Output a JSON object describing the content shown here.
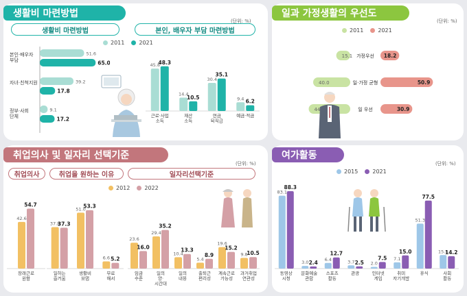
{
  "colors": {
    "teal": "#1fb3a8",
    "light_teal": "#a9ddd4",
    "green": "#8cc63f",
    "light_green": "#c9e3a3",
    "salmon": "#e8958b",
    "rose": "#c2767c",
    "pink": "#d4a0a6",
    "gold": "#f2c063",
    "purple": "#8a5db3",
    "lavender": "#c8b7e0",
    "light_blue": "#9ec7e8"
  },
  "panels": {
    "living": {
      "title": "생활비 마련방법",
      "unit": "(단위: %)",
      "pill_left": "생활비 마련방법",
      "pill_right": "본인, 배우자 부담 마련방법",
      "legend": [
        "2011",
        "2021"
      ]
    },
    "balance": {
      "title": "일과 가정생활의 우선도",
      "unit": "(단위: %)",
      "legend": [
        "2011",
        "2021"
      ]
    },
    "employment": {
      "title": "취업의사 및 일자리 선택기준",
      "unit": "(단위: %)",
      "pill_1": "취업의사",
      "pill_2": "취업을 원하는 이유",
      "pill_3": "일자리선택기준",
      "legend": [
        "2012",
        "2022"
      ]
    },
    "leisure": {
      "title": "여가활동",
      "unit": "(단위: %)",
      "legend": [
        "2015",
        "2021"
      ]
    }
  },
  "chart_data": [
    {
      "type": "bar",
      "orientation": "horizontal",
      "categories": [
        "본인·배우자 부담",
        "자녀·친척지원",
        "정부·사회 단체"
      ],
      "series": [
        {
          "name": "2011",
          "values": [
            51.6,
            39.2,
            9.1
          ]
        },
        {
          "name": "2021",
          "values": [
            65.0,
            17.8,
            17.2
          ]
        }
      ]
    },
    {
      "type": "bar",
      "categories": [
        "근로·사업 소득",
        "재산 소득",
        "연금 퇴직급",
        "예금·적금"
      ],
      "series": [
        {
          "name": "2011",
          "values": [
            45.8,
            14.4,
            30.4,
            9.4
          ]
        },
        {
          "name": "2021",
          "values": [
            48.3,
            10.5,
            35.1,
            6.2
          ]
        }
      ]
    },
    {
      "type": "bar",
      "orientation": "diverging",
      "categories": [
        "가정우선",
        "일·가정 균형",
        "일 우선"
      ],
      "series": [
        {
          "name": "2011",
          "values": [
            15.1,
            40.0,
            44.8
          ]
        },
        {
          "name": "2021",
          "values": [
            18.2,
            50.9,
            30.9
          ]
        }
      ]
    },
    {
      "type": "bar",
      "categories": [
        "장래근로 원함"
      ],
      "series": [
        {
          "name": "2012",
          "values": [
            42.6
          ]
        },
        {
          "name": "2022",
          "values": [
            54.7
          ]
        }
      ]
    },
    {
      "type": "bar",
      "categories": [
        "일하는 즐거움",
        "생활비 보탬",
        "무료 해서"
      ],
      "series": [
        {
          "name": "2012",
          "values": [
            37.8,
            51.0,
            6.6
          ]
        },
        {
          "name": "2022",
          "values": [
            37.3,
            53.3,
            5.2
          ]
        }
      ]
    },
    {
      "type": "bar",
      "categories": [
        "임금 수준",
        "일의 양· 시간대",
        "일의 내용",
        "출퇴근 편리성",
        "계속근로 가능성",
        "과거취업 연관성"
      ],
      "series": [
        {
          "name": "2012",
          "values": [
            23.6,
            29.4,
            10.4,
            5.4,
            19.6,
            9.8
          ]
        },
        {
          "name": "2022",
          "values": [
            16.0,
            35.2,
            13.3,
            8.9,
            15.2,
            10.5
          ]
        }
      ]
    },
    {
      "type": "bar",
      "categories": [
        "동영상 시청",
        "문화예술 관람",
        "스포츠 활동",
        "관광",
        "인터넷 게임",
        "취미 자기개발",
        "휴식",
        "사회 활동"
      ],
      "series": [
        {
          "name": "2015",
          "values": [
            83.1,
            3.0,
            6.4,
            3.7,
            2.0,
            7.1,
            51.3,
            15.4
          ]
        },
        {
          "name": "2021",
          "values": [
            88.3,
            2.4,
            12.7,
            2.5,
            7.5,
            15.0,
            77.5,
            14.2
          ]
        }
      ]
    }
  ]
}
